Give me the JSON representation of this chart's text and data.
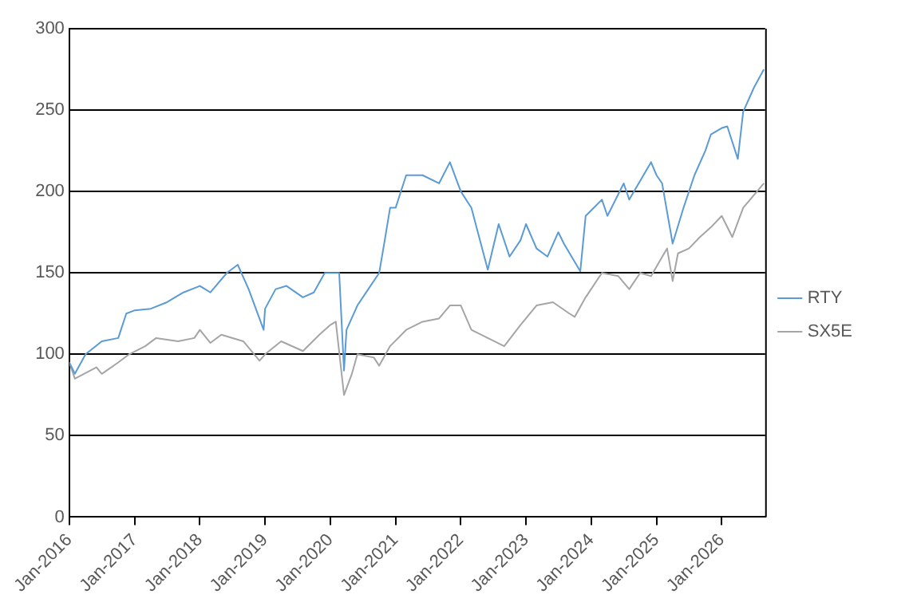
{
  "chart_data": {
    "type": "line",
    "legend": "right",
    "grid": "y",
    "marker": "none",
    "line_style": "solid",
    "xlim": [
      "2016-01-01",
      "2026-09-01"
    ],
    "xticks": [
      {
        "value": "2016-01-01",
        "label": "Jan-2016"
      },
      {
        "value": "2017-01-01",
        "label": "Jan-2017"
      },
      {
        "value": "2018-01-01",
        "label": "Jan-2018"
      },
      {
        "value": "2019-01-01",
        "label": "Jan-2019"
      },
      {
        "value": "2020-01-01",
        "label": "Jan-2020"
      },
      {
        "value": "2021-01-01",
        "label": "Jan-2021"
      },
      {
        "value": "2022-01-01",
        "label": "Jan-2022"
      },
      {
        "value": "2023-01-01",
        "label": "Jan-2023"
      },
      {
        "value": "2024-01-01",
        "label": "Jan-2024"
      },
      {
        "value": "2025-01-01",
        "label": "Jan-2025"
      },
      {
        "value": "2026-01-01",
        "label": "Jan-2026"
      }
    ],
    "ylim": [
      0,
      300
    ],
    "yticks": [
      0,
      50,
      100,
      150,
      200,
      250,
      300
    ],
    "series": [
      {
        "name": "RTY",
        "color": "#5b9bd5",
        "x": [
          "2016-01",
          "2016-02",
          "2016-04",
          "2016-07",
          "2016-10",
          "2016-11-15",
          "2017-01",
          "2017-04",
          "2017-07",
          "2017-10",
          "2018-01",
          "2018-03",
          "2018-06",
          "2018-08",
          "2018-10",
          "2018-12-24",
          "2019-01",
          "2019-03",
          "2019-05",
          "2019-08",
          "2019-10",
          "2019-12",
          "2020-02-20",
          "2020-03-18",
          "2020-04",
          "2020-06",
          "2020-08",
          "2020-10",
          "2020-11",
          "2020-12",
          "2021-01",
          "2021-03",
          "2021-06",
          "2021-09",
          "2021-11",
          "2022-01",
          "2022-03",
          "2022-06",
          "2022-08",
          "2022-10",
          "2022-12",
          "2023-01",
          "2023-03",
          "2023-05",
          "2023-07",
          "2023-08",
          "2023-11",
          "2023-12",
          "2024-03",
          "2024-04",
          "2024-07",
          "2024-08",
          "2024-12",
          "2025-01",
          "2025-02",
          "2025-04",
          "2025-06",
          "2025-08",
          "2025-10",
          "2025-11",
          "2026-01",
          "2026-02",
          "2026-04",
          "2026-05",
          "2026-07",
          "2026-08-25"
        ],
        "values": [
          95,
          88,
          100,
          108,
          110,
          125,
          127,
          128,
          132,
          138,
          142,
          138,
          150,
          155,
          140,
          115,
          128,
          140,
          142,
          135,
          138,
          150,
          150,
          90,
          115,
          130,
          140,
          150,
          170,
          190,
          190,
          210,
          210,
          205,
          218,
          200,
          190,
          152,
          180,
          160,
          170,
          180,
          165,
          160,
          175,
          168,
          151,
          185,
          195,
          185,
          205,
          195,
          218,
          210,
          205,
          168,
          190,
          210,
          225,
          235,
          239,
          240,
          220,
          249,
          264,
          275
        ]
      },
      {
        "name": "SX5E",
        "color": "#a5a5a5",
        "x": [
          "2016-01",
          "2016-02",
          "2016-06",
          "2016-07",
          "2016-10",
          "2016-12",
          "2017-03",
          "2017-05",
          "2017-09",
          "2017-12",
          "2018-01",
          "2018-03",
          "2018-05",
          "2018-09",
          "2018-12",
          "2019-01",
          "2019-04",
          "2019-08",
          "2019-11",
          "2020-01",
          "2020-02",
          "2020-03-18",
          "2020-05",
          "2020-06",
          "2020-09",
          "2020-10",
          "2020-12",
          "2021-03",
          "2021-06",
          "2021-09",
          "2021-11",
          "2022-01",
          "2022-03",
          "2022-06",
          "2022-09",
          "2022-12",
          "2023-03",
          "2023-06",
          "2023-09",
          "2023-10",
          "2023-12",
          "2024-03",
          "2024-06",
          "2024-08",
          "2024-10",
          "2024-12",
          "2025-03",
          "2025-04",
          "2025-05",
          "2025-07",
          "2025-09",
          "2025-11",
          "2026-01",
          "2026-03",
          "2026-05",
          "2026-08-25"
        ],
        "values": [
          95,
          85,
          92,
          88,
          95,
          100,
          105,
          110,
          108,
          110,
          115,
          107,
          112,
          108,
          96,
          100,
          108,
          102,
          112,
          118,
          120,
          75,
          88,
          100,
          98,
          93,
          105,
          115,
          120,
          122,
          130,
          130,
          115,
          110,
          105,
          118,
          130,
          132,
          125,
          123,
          135,
          150,
          148,
          140,
          150,
          148,
          165,
          145,
          162,
          165,
          172,
          178,
          185,
          172,
          190,
          205
        ]
      }
    ]
  }
}
